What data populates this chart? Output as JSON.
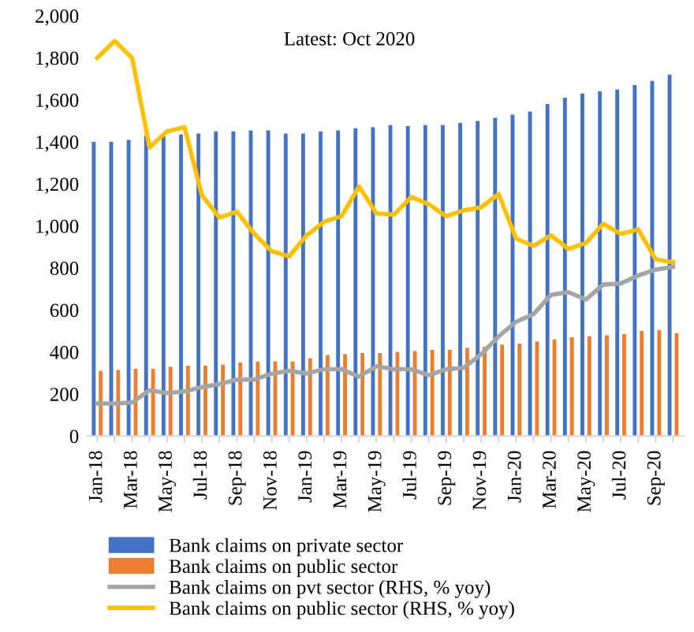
{
  "chart_data": {
    "type": "bar",
    "categories": [
      "Jan-18",
      null,
      "Mar-18",
      null,
      "May-18",
      null,
      "Jul-18",
      null,
      "Sep-18",
      null,
      "Nov-18",
      null,
      "Jan-19",
      null,
      "Mar-19",
      null,
      "May-19",
      null,
      "Jul-19",
      null,
      "Sep-19",
      null,
      "Nov-19",
      null,
      "Jan-20",
      null,
      "Mar-20",
      null,
      "May-20",
      null,
      "Jul-20",
      null,
      "Sep-20",
      null
    ],
    "series": [
      {
        "name": "Bank claims on private sector",
        "color": "#4472c4",
        "values": [
          1400,
          1400,
          1410,
          1430,
          1440,
          1435,
          1440,
          1450,
          1450,
          1455,
          1455,
          1440,
          1440,
          1450,
          1455,
          1465,
          1470,
          1480,
          1475,
          1480,
          1480,
          1490,
          1500,
          1515,
          1530,
          1545,
          1580,
          1610,
          1630,
          1640,
          1650,
          1670,
          1690,
          1720
        ]
      },
      {
        "name": "Bank claims on public sector",
        "color": "#ed7d31",
        "values": [
          310,
          315,
          320,
          320,
          330,
          335,
          335,
          340,
          350,
          355,
          355,
          355,
          370,
          385,
          390,
          395,
          395,
          400,
          405,
          410,
          410,
          420,
          425,
          435,
          440,
          450,
          460,
          470,
          475,
          480,
          485,
          500,
          505,
          490
        ]
      },
      {
        "name": "Bank claims on pvt sector (RHS, % yoy)",
        "type": "line",
        "color": "#a5a5a5",
        "values": [
          155,
          155,
          160,
          218,
          205,
          212,
          233,
          247,
          269,
          269,
          297,
          311,
          298,
          318,
          318,
          283,
          332,
          318,
          318,
          290,
          318,
          325,
          389,
          474,
          544,
          580,
          672,
          685,
          650,
          721,
          726,
          764,
          792,
          806
        ]
      },
      {
        "name": "Bank claims on public sector (RHS, % yoy)",
        "type": "line",
        "color": "#ffc000",
        "values": [
          1800,
          1880,
          1800,
          1374,
          1450,
          1470,
          1146,
          1040,
          1068,
          962,
          880,
          855,
          955,
          1020,
          1046,
          1188,
          1060,
          1053,
          1138,
          1103,
          1046,
          1074,
          1089,
          1152,
          940,
          905,
          955,
          891,
          919,
          1011,
          962,
          983,
          841,
          827
        ]
      }
    ],
    "ylim": [
      0,
      2000
    ],
    "yticks": [
      {
        "value": 0,
        "label": "0"
      },
      {
        "value": 200,
        "label": "200"
      },
      {
        "value": 400,
        "label": "400"
      },
      {
        "value": 600,
        "label": "600"
      },
      {
        "value": 800,
        "label": "800"
      },
      {
        "value": 1000,
        "label": "1,000"
      },
      {
        "value": 1200,
        "label": "1,200"
      },
      {
        "value": 1400,
        "label": "1,400"
      },
      {
        "value": 1600,
        "label": "1,600"
      },
      {
        "value": 1800,
        "label": "1,800"
      },
      {
        "value": 2000,
        "label": "2,000"
      }
    ],
    "annotations": [
      "Latest: Oct 2020"
    ],
    "legend": "bottom",
    "grid": false,
    "marker": "none",
    "line_style": "solid"
  }
}
